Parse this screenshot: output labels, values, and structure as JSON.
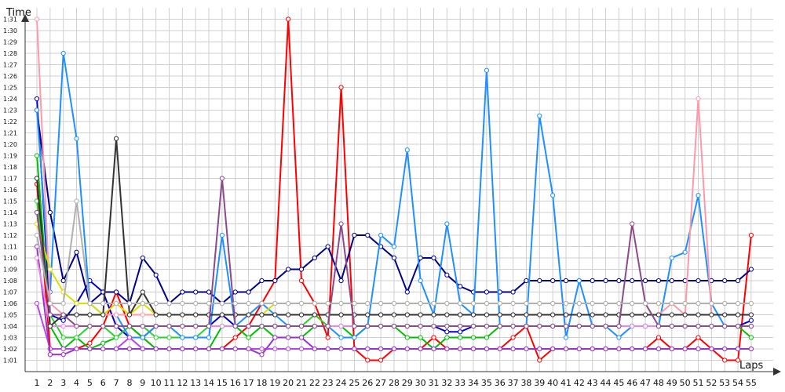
{
  "chart_data": {
    "type": "line",
    "xlabel": "Laps",
    "ylabel": "Time",
    "grid": true,
    "x": [
      1,
      2,
      3,
      4,
      5,
      6,
      7,
      8,
      9,
      10,
      11,
      12,
      13,
      14,
      15,
      16,
      17,
      18,
      19,
      20,
      21,
      22,
      23,
      24,
      25,
      26,
      27,
      28,
      29,
      30,
      31,
      32,
      33,
      34,
      35,
      36,
      37,
      38,
      39,
      40,
      41,
      42,
      43,
      44,
      45,
      46,
      47,
      48,
      49,
      50,
      51,
      52,
      53,
      54,
      55
    ],
    "x_tick_labels": [
      "1",
      "2",
      "3",
      "4",
      "5",
      "6",
      "7",
      "8",
      "9",
      "10",
      "11",
      "12",
      "13",
      "14",
      "15",
      "16",
      "17",
      "18",
      "19",
      "20",
      "21",
      "22",
      "23",
      "24",
      "25",
      "26",
      "27",
      "28",
      "29",
      "30",
      "31",
      "32",
      "33",
      "34",
      "35",
      "36",
      "37",
      "38",
      "39",
      "40",
      "41",
      "42",
      "43",
      "44",
      "45",
      "46",
      "47",
      "48",
      "49",
      "50",
      "51",
      "52",
      "53",
      "54",
      "55"
    ],
    "y_tick_labels": [
      "1:01",
      "1:02",
      "1:03",
      "1:04",
      "1:05",
      "1:06",
      "1:07",
      "1:08",
      "1:09",
      "1:10",
      "1:11",
      "1:12",
      "1:13",
      "1:14",
      "1:15",
      "1:16",
      "1:17",
      "1:18",
      "1:19",
      "1:20",
      "1:21",
      "1:22",
      "1:23",
      "1:24",
      "1:25",
      "1:26",
      "1:27",
      "1:28",
      "1:29",
      "1:30",
      "1:31"
    ],
    "ylim": [
      60,
      92
    ],
    "series": [
      {
        "color": "#ff0000",
        "values": [
          76.5,
          62,
          62,
          62,
          62.5,
          64,
          67,
          64,
          63,
          62,
          62,
          62,
          62,
          62,
          62,
          63,
          64,
          66,
          68,
          91,
          68,
          66,
          63,
          85,
          62,
          61,
          61,
          62,
          62,
          62,
          63,
          62,
          62,
          62,
          62,
          62,
          63,
          64,
          61,
          62,
          62,
          62,
          62,
          62,
          62,
          62,
          62,
          63,
          62,
          62,
          63,
          62,
          61,
          61,
          72
        ]
      },
      {
        "color": "#0000c8",
        "values": [
          84,
          65,
          64.5,
          66,
          68,
          67,
          64,
          63,
          63,
          64,
          64,
          64,
          64,
          64,
          65,
          64,
          64,
          64,
          64,
          64,
          64,
          64,
          64,
          64,
          64,
          64,
          64,
          64,
          64,
          64,
          64,
          63.5,
          63.5,
          64,
          64,
          64,
          64,
          64,
          64,
          64,
          64,
          64,
          64,
          64,
          64,
          64,
          64,
          64,
          64,
          64,
          64,
          64,
          64,
          64,
          64.5
        ]
      },
      {
        "color": "#00008b",
        "values": [
          83,
          74,
          68,
          70.5,
          66,
          67,
          67,
          66,
          70,
          68.5,
          66,
          67,
          67,
          67,
          66,
          67,
          67,
          68,
          68,
          69,
          69,
          70,
          71,
          68,
          72,
          72,
          71,
          70,
          67,
          70,
          70,
          68.5,
          67.5,
          67,
          67,
          67,
          67,
          68,
          68,
          68,
          68,
          68,
          68,
          68,
          68,
          68,
          68,
          68,
          68,
          68,
          68,
          68,
          68,
          68,
          69
        ]
      },
      {
        "color": "#00c000",
        "values": [
          79,
          64,
          62,
          63,
          62,
          62.5,
          63,
          64,
          63,
          62,
          62,
          62,
          62,
          62,
          64,
          64,
          63,
          64,
          63,
          63,
          63,
          64,
          64,
          64,
          63,
          64,
          64,
          64,
          63,
          63,
          62,
          63,
          63,
          63,
          63,
          64,
          64,
          64,
          64,
          64,
          64,
          64,
          64,
          64,
          64,
          64,
          64,
          64,
          64,
          64,
          64,
          64,
          64,
          64,
          63
        ]
      },
      {
        "color": "#2bd12b",
        "values": [
          75,
          65,
          63,
          63,
          64,
          64,
          63,
          64,
          64,
          63,
          63,
          63,
          63,
          64,
          64,
          64,
          64,
          64,
          64,
          64,
          64,
          65,
          64,
          64,
          64,
          64,
          64,
          64,
          64,
          64,
          64,
          64,
          64,
          64,
          64,
          64,
          64,
          64,
          64,
          64,
          64,
          64,
          64,
          64,
          64,
          64,
          64,
          64,
          64,
          64,
          64,
          64,
          64,
          64,
          64
        ]
      },
      {
        "color": "#1e90ff",
        "values": [
          83,
          67,
          88,
          80.5,
          66,
          65,
          65,
          63,
          63,
          64,
          64,
          63,
          63,
          63,
          72,
          64,
          65,
          66,
          65,
          64,
          64,
          64,
          64,
          63,
          63,
          64,
          72,
          71,
          79.5,
          68,
          65,
          73,
          66,
          65,
          86.5,
          64,
          64,
          64,
          82.5,
          75.5,
          63,
          68,
          64,
          64,
          63,
          64,
          64,
          64,
          70,
          70.5,
          75.5,
          66,
          64,
          64,
          64
        ]
      },
      {
        "color": "#bb44ee",
        "values": [
          66,
          62,
          62,
          62,
          62,
          62,
          62,
          63,
          62,
          62,
          62,
          62,
          62,
          62,
          62,
          62,
          62,
          62,
          62,
          62,
          62,
          62,
          62,
          62,
          62,
          62,
          62,
          62,
          62,
          62,
          62,
          62,
          62,
          62,
          62,
          62,
          62,
          62,
          62,
          62,
          62,
          62,
          62,
          62,
          62,
          62,
          62,
          62,
          62,
          62,
          62,
          62,
          62,
          62,
          62
        ]
      },
      {
        "color": "#9932cc",
        "values": [
          71,
          61.5,
          61.5,
          62,
          62,
          62,
          62,
          62,
          62,
          62,
          62,
          62,
          62,
          62,
          62,
          62,
          62,
          61.5,
          63,
          63,
          63,
          62,
          62,
          62,
          62,
          62,
          62,
          62,
          62,
          62,
          62,
          62,
          62,
          62,
          62,
          62,
          62,
          62,
          62,
          62,
          62,
          62,
          62,
          62,
          62,
          62,
          62,
          62,
          62,
          62,
          62,
          62,
          62,
          62,
          62
        ]
      },
      {
        "color": "#ee82ee",
        "values": [
          70,
          64,
          64,
          64,
          64,
          64,
          64,
          64,
          64,
          64,
          64,
          64,
          64,
          64,
          64,
          64,
          64,
          64,
          64,
          64,
          64,
          64,
          64,
          64,
          64,
          64,
          64,
          64,
          64,
          64,
          64,
          64,
          64,
          64,
          64,
          64,
          64,
          64,
          64,
          64,
          64,
          64,
          64,
          64,
          64,
          64,
          64,
          64,
          64,
          64,
          64,
          64,
          64,
          64,
          64
        ]
      },
      {
        "color": "#ff99aa",
        "values": [
          91,
          66,
          65,
          65,
          65,
          65,
          65,
          65,
          65,
          65,
          65,
          65,
          65,
          65,
          65,
          65,
          65,
          65,
          65,
          65,
          65,
          65,
          65,
          65,
          65,
          65,
          65,
          65,
          65,
          65,
          65,
          65,
          65,
          65,
          65,
          65,
          65,
          65,
          65,
          65,
          65,
          65,
          65,
          65,
          65,
          65,
          65,
          65,
          66,
          65,
          84,
          65,
          65,
          65,
          65
        ]
      },
      {
        "color": "#dddd00",
        "values": [
          73,
          69,
          67,
          66,
          66,
          65,
          66,
          65,
          66,
          65,
          65,
          65,
          65,
          65,
          65,
          65,
          65,
          65,
          66,
          66,
          66,
          66,
          66,
          66,
          66,
          66,
          66,
          66,
          66,
          66,
          66,
          66,
          66,
          66,
          66,
          66,
          66,
          66,
          66,
          66,
          66,
          66,
          66,
          66,
          66,
          66,
          66,
          66,
          66,
          66,
          66,
          66,
          66,
          66,
          66
        ]
      },
      {
        "color": "#333333",
        "values": [
          77,
          64,
          65,
          65,
          65,
          65,
          80.5,
          65,
          67,
          65,
          65,
          65,
          65,
          65,
          65,
          65,
          65,
          65,
          65,
          65,
          65,
          65,
          65,
          65,
          65,
          65,
          65,
          65,
          65,
          65,
          65,
          65,
          65,
          65,
          65,
          65,
          65,
          65,
          65,
          65,
          65,
          65,
          65,
          65,
          65,
          65,
          65,
          65,
          65,
          65,
          65,
          65,
          65,
          65,
          65
        ]
      },
      {
        "color": "#8b4a8b",
        "values": [
          74,
          65,
          65,
          64,
          64,
          64,
          64,
          64,
          64,
          64,
          64,
          64,
          64,
          64,
          77,
          64,
          64,
          64,
          64,
          64,
          64,
          64,
          64,
          73,
          64,
          64,
          64,
          64,
          64,
          64,
          64,
          64,
          64,
          64,
          64,
          64,
          64,
          64,
          64,
          64,
          64,
          64,
          64,
          64,
          64,
          73,
          66,
          64,
          64,
          64,
          64,
          64,
          64,
          64,
          64
        ]
      },
      {
        "color": "#b0b0b0",
        "values": [
          72,
          66,
          66,
          75,
          66,
          66,
          66,
          66,
          66,
          66,
          66,
          66,
          66,
          66,
          66,
          66,
          66,
          66,
          66,
          66,
          66,
          66,
          66,
          66,
          66,
          66,
          66,
          66,
          66,
          66,
          66,
          66,
          66,
          66,
          66,
          66,
          66,
          66,
          66,
          66,
          66,
          66,
          66,
          66,
          66,
          66,
          66,
          66,
          66,
          66,
          66,
          66,
          66,
          66,
          66
        ]
      }
    ]
  }
}
